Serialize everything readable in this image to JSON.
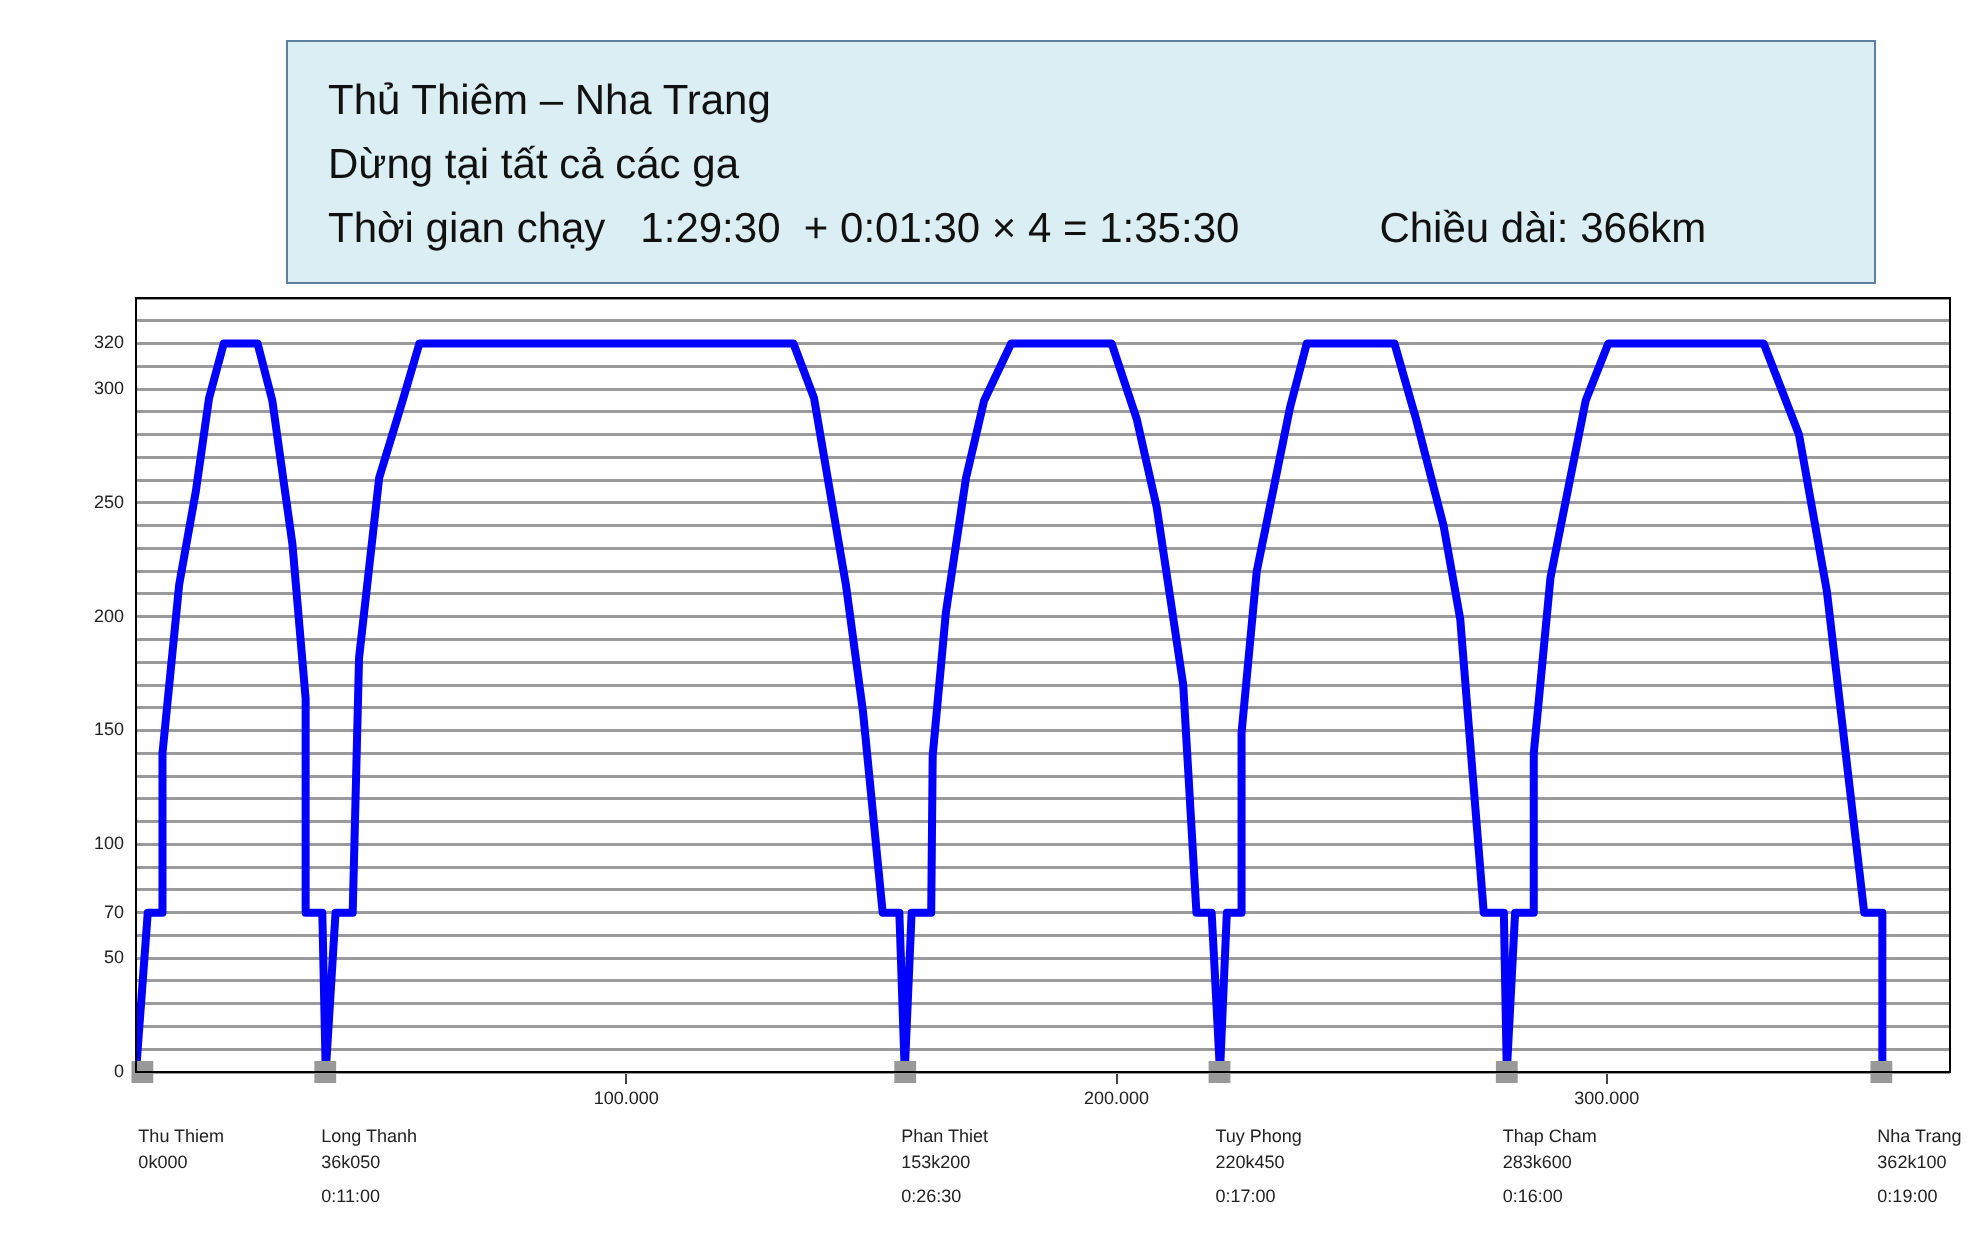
{
  "chart_data": {
    "type": "line",
    "title": "Thủ Thiêm – Nha Trang",
    "subtitle": "Dừng tại tất cả các ga",
    "annotations": [
      "Thời gian chạy   1:29:30  + 0:01:30 × 4 = 1:35:30",
      "Chiều dài: 366km",
      {
        "text": "Thu Thiem\n0k000",
        "x": 1300,
        "y": 0
      },
      {
        "text": "Long Thanh\n36k050\n0:11:00",
        "x": 38600,
        "y": 0
      },
      {
        "text": "Phan Thiet\n153k200\n0:26:30",
        "x": 156900,
        "y": 0
      },
      {
        "text": "Tuy Phong\n220k450\n0:17:00",
        "x": 221000,
        "y": 0
      },
      {
        "text": "Thap Cham\n283k600\n0:16:00",
        "x": 279600,
        "y": 0
      },
      {
        "text": "Nha Trang\n362k100\n0:19:00",
        "x": 356000,
        "y": 0
      }
    ],
    "series": [
      {
        "color": "#0000ff",
        "x": [
          0,
          2400,
          5400,
          5400,
          8800,
          12200,
          14900,
          17900,
          24800,
          27800,
          31900,
          34600,
          34600,
          38000,
          38700,
          40700,
          44200,
          45500,
          49600,
          54400,
          57800,
          134100,
          138300,
          144800,
          148300,
          152300,
          155700,
          156800,
          158200,
          162200,
          162500,
          165200,
          169300,
          173000,
          178500,
          199000,
          204100,
          208200,
          213600,
          216300,
          219400,
          221100,
          222500,
          225200,
          225500,
          228600,
          235400,
          238800,
          256700,
          261200,
          266700,
          270100,
          274900,
          279000,
          279600,
          281300,
          284800,
          285100,
          288500,
          295700,
          300300,
          332000,
          339200,
          344900,
          352500,
          356200,
          356200
        ],
        "values": [
          0,
          70,
          70,
          140,
          214,
          255,
          296,
          320,
          320,
          295,
          232,
          164,
          70,
          70,
          0,
          70,
          70,
          182,
          261,
          295,
          320,
          320,
          296,
          214,
          158,
          70,
          70,
          0,
          70,
          70,
          139,
          202,
          261,
          295,
          320,
          320,
          287,
          248,
          170,
          70,
          70,
          0,
          70,
          70,
          149,
          220,
          292,
          320,
          320,
          286,
          240,
          199,
          70,
          70,
          0,
          70,
          70,
          140,
          217,
          295,
          320,
          320,
          280,
          211,
          70,
          70,
          0
        ]
      },
      {
        "type": "scatter",
        "color": "#999999",
        "marker": "square",
        "x": [
          1300,
          38600,
          156900,
          221000,
          279600,
          356000
        ],
        "values": [
          0,
          0,
          0,
          0,
          0,
          0
        ]
      }
    ],
    "xlim": [
      0,
      370000
    ],
    "xticks": [
      {
        "value": 100000,
        "label": "100.000"
      },
      {
        "value": 200000,
        "label": "200.000"
      },
      {
        "value": 300000,
        "label": "300.000"
      }
    ],
    "ylim": [
      0,
      340
    ],
    "yticks": [
      0,
      {
        "value": 10,
        "label": null
      },
      {
        "value": 20,
        "label": null
      },
      {
        "value": 30,
        "label": null
      },
      {
        "value": 40,
        "label": null
      },
      50,
      {
        "value": 60,
        "label": null
      },
      70,
      {
        "value": 80,
        "label": null
      },
      {
        "value": 90,
        "label": null
      },
      100,
      {
        "value": 110,
        "label": null
      },
      {
        "value": 120,
        "label": null
      },
      {
        "value": 130,
        "label": null
      },
      {
        "value": 140,
        "label": null
      },
      150,
      {
        "value": 160,
        "label": null
      },
      {
        "value": 170,
        "label": null
      },
      {
        "value": 180,
        "label": null
      },
      {
        "value": 190,
        "label": null
      },
      200,
      {
        "value": 210,
        "label": null
      },
      {
        "value": 220,
        "label": null
      },
      {
        "value": 230,
        "label": null
      },
      {
        "value": 240,
        "label": null
      },
      250,
      {
        "value": 260,
        "label": null
      },
      {
        "value": 270,
        "label": null
      },
      {
        "value": 280,
        "label": null
      },
      {
        "value": 290,
        "label": null
      },
      300,
      {
        "value": 310,
        "label": null
      },
      320,
      {
        "value": 330,
        "label": null
      },
      {
        "value": 340,
        "label": null
      }
    ],
    "grid": "y",
    "line_style": "solid",
    "marker": "none"
  }
}
